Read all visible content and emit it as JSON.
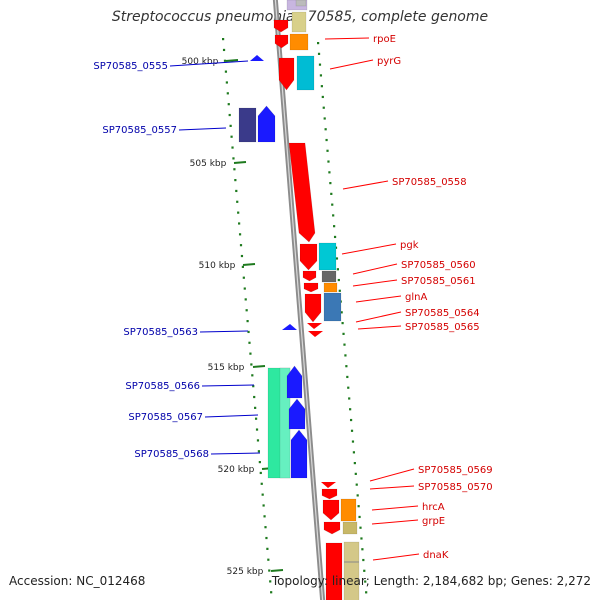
{
  "title": "Streptococcus pneumoniae 70585, complete genome",
  "footer": {
    "accession": "Accession: NC_012468",
    "summary": "Topology: linear; Length: 2,184,682 bp; Genes: 2,272"
  },
  "scale_ticks": [
    "500 kbp",
    "505 kbp",
    "510 kbp",
    "515 kbp",
    "520 kbp",
    "525 kbp"
  ],
  "colors": {
    "backbone": "#8c8c8c",
    "tick": "#1e7a1e",
    "label_forward": "#d40000",
    "label_reverse": "#0000aa"
  },
  "genes_right": [
    {
      "name": "rpoE",
      "color": "#ff0000"
    },
    {
      "name": "pyrG",
      "color": "#ff0000"
    },
    {
      "name": "SP70585_0558",
      "color": "#ff0000"
    },
    {
      "name": "pgk",
      "color": "#ff0000"
    },
    {
      "name": "SP70585_0560",
      "color": "#ff0000"
    },
    {
      "name": "SP70585_0561",
      "color": "#ff0000"
    },
    {
      "name": "glnA",
      "color": "#ff0000"
    },
    {
      "name": "SP70585_0564",
      "color": "#ff0000"
    },
    {
      "name": "SP70585_0565",
      "color": "#ff0000"
    },
    {
      "name": "SP70585_0569",
      "color": "#ff0000"
    },
    {
      "name": "SP70585_0570",
      "color": "#ff0000"
    },
    {
      "name": "hrcA",
      "color": "#ff0000"
    },
    {
      "name": "grpE",
      "color": "#ff0000"
    },
    {
      "name": "dnaK",
      "color": "#ff0000"
    }
  ],
  "genes_left": [
    {
      "name": "SP70585_0555"
    },
    {
      "name": "SP70585_0557"
    },
    {
      "name": "SP70585_0563"
    },
    {
      "name": "SP70585_0566"
    },
    {
      "name": "SP70585_0567"
    },
    {
      "name": "SP70585_0568"
    }
  ]
}
